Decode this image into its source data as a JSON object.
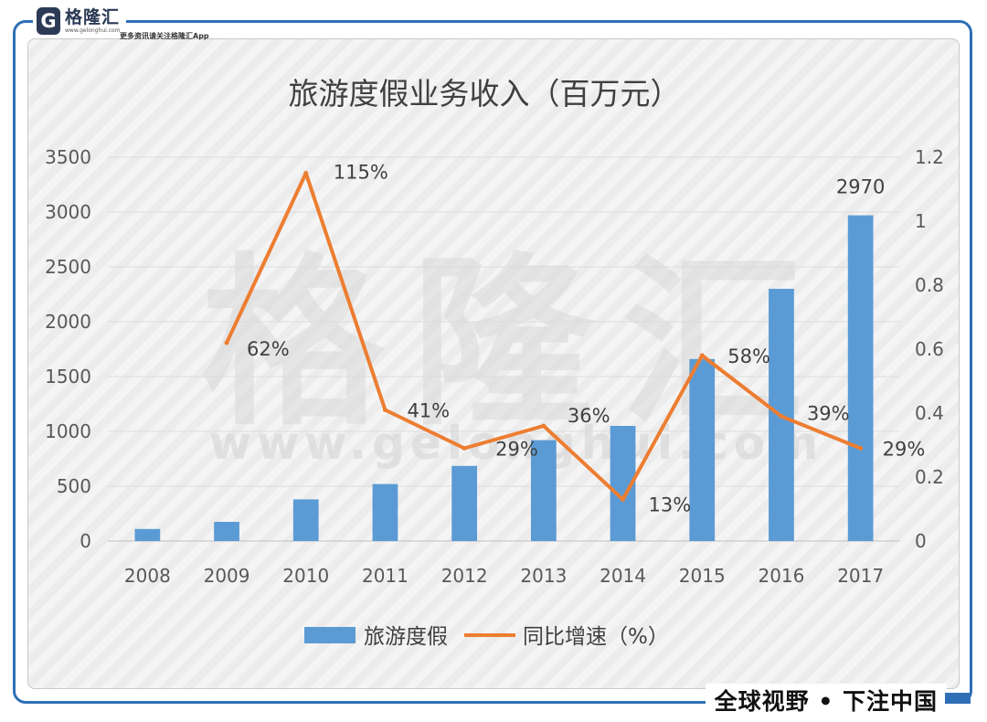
{
  "branding": {
    "logo_char": "G",
    "logo_name": "格隆汇",
    "logo_domain": "www.gelonghui.com",
    "logo_slogan": "更多资讯请关注格隆汇App",
    "watermark_name": "格隆汇",
    "watermark_domain": "www.gelonghui.com",
    "footer_slogan": "全球视野 • 下注中国"
  },
  "colors": {
    "bar": "#5b9bd5",
    "line": "#ed7d31",
    "frame": "#2f6fb6"
  },
  "chart_data": {
    "type": "bar",
    "title": "旅游度假业务收入（百万元）",
    "categories": [
      "2008",
      "2009",
      "2010",
      "2011",
      "2012",
      "2013",
      "2014",
      "2015",
      "2016",
      "2017"
    ],
    "series": [
      {
        "name": "旅游度假",
        "type": "bar",
        "axis": "left",
        "values": [
          110,
          175,
          380,
          520,
          685,
          920,
          1050,
          1660,
          2300,
          2970
        ],
        "labels": [
          null,
          null,
          null,
          null,
          null,
          null,
          null,
          null,
          null,
          "2970"
        ]
      },
      {
        "name": "同比增速（%）",
        "type": "line",
        "axis": "right",
        "values": [
          null,
          0.62,
          1.15,
          0.41,
          0.29,
          0.36,
          0.13,
          0.58,
          0.39,
          0.29
        ],
        "labels": [
          null,
          "62%",
          "115%",
          "41%",
          "29%",
          "36%",
          "13%",
          "58%",
          "39%",
          "29%"
        ]
      }
    ],
    "y_left": {
      "min": 0,
      "max": 3500,
      "ticks": [
        "0",
        "500",
        "1000",
        "1500",
        "2000",
        "2500",
        "3000",
        "3500"
      ]
    },
    "y_right": {
      "min": 0,
      "max": 1.2,
      "ticks": [
        "0",
        "0.2",
        "0.4",
        "0.6",
        "0.8",
        "1",
        "1.2"
      ]
    },
    "grid": true,
    "legend": "bottom"
  }
}
